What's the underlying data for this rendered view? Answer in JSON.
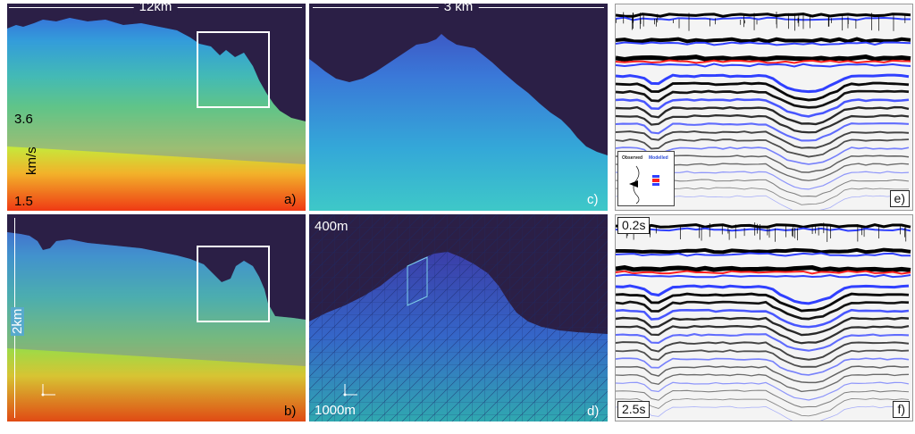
{
  "panel_a": {
    "scale_label": "12km",
    "velocity_max": "3.6",
    "velocity_unit": "km/s",
    "velocity_min": "1.5",
    "tag": "a)"
  },
  "panel_b": {
    "depth_label": "2km",
    "tag": "b)"
  },
  "panel_c": {
    "scale_label": "3 km",
    "tag": "c)"
  },
  "panel_d": {
    "top_label": "400m",
    "bottom_label": "1000m",
    "tag": "d)"
  },
  "panel_e": {
    "tag": "e)",
    "legend_observed": "Observed",
    "legend_modelled": "Modelled"
  },
  "panel_f": {
    "top_time": "0.2s",
    "bottom_time": "2.5s",
    "tag": "f)"
  },
  "colors": {
    "water": "#2b1f46",
    "accent_box": "#ffffff",
    "mesh_line": "#1a2a6a"
  }
}
